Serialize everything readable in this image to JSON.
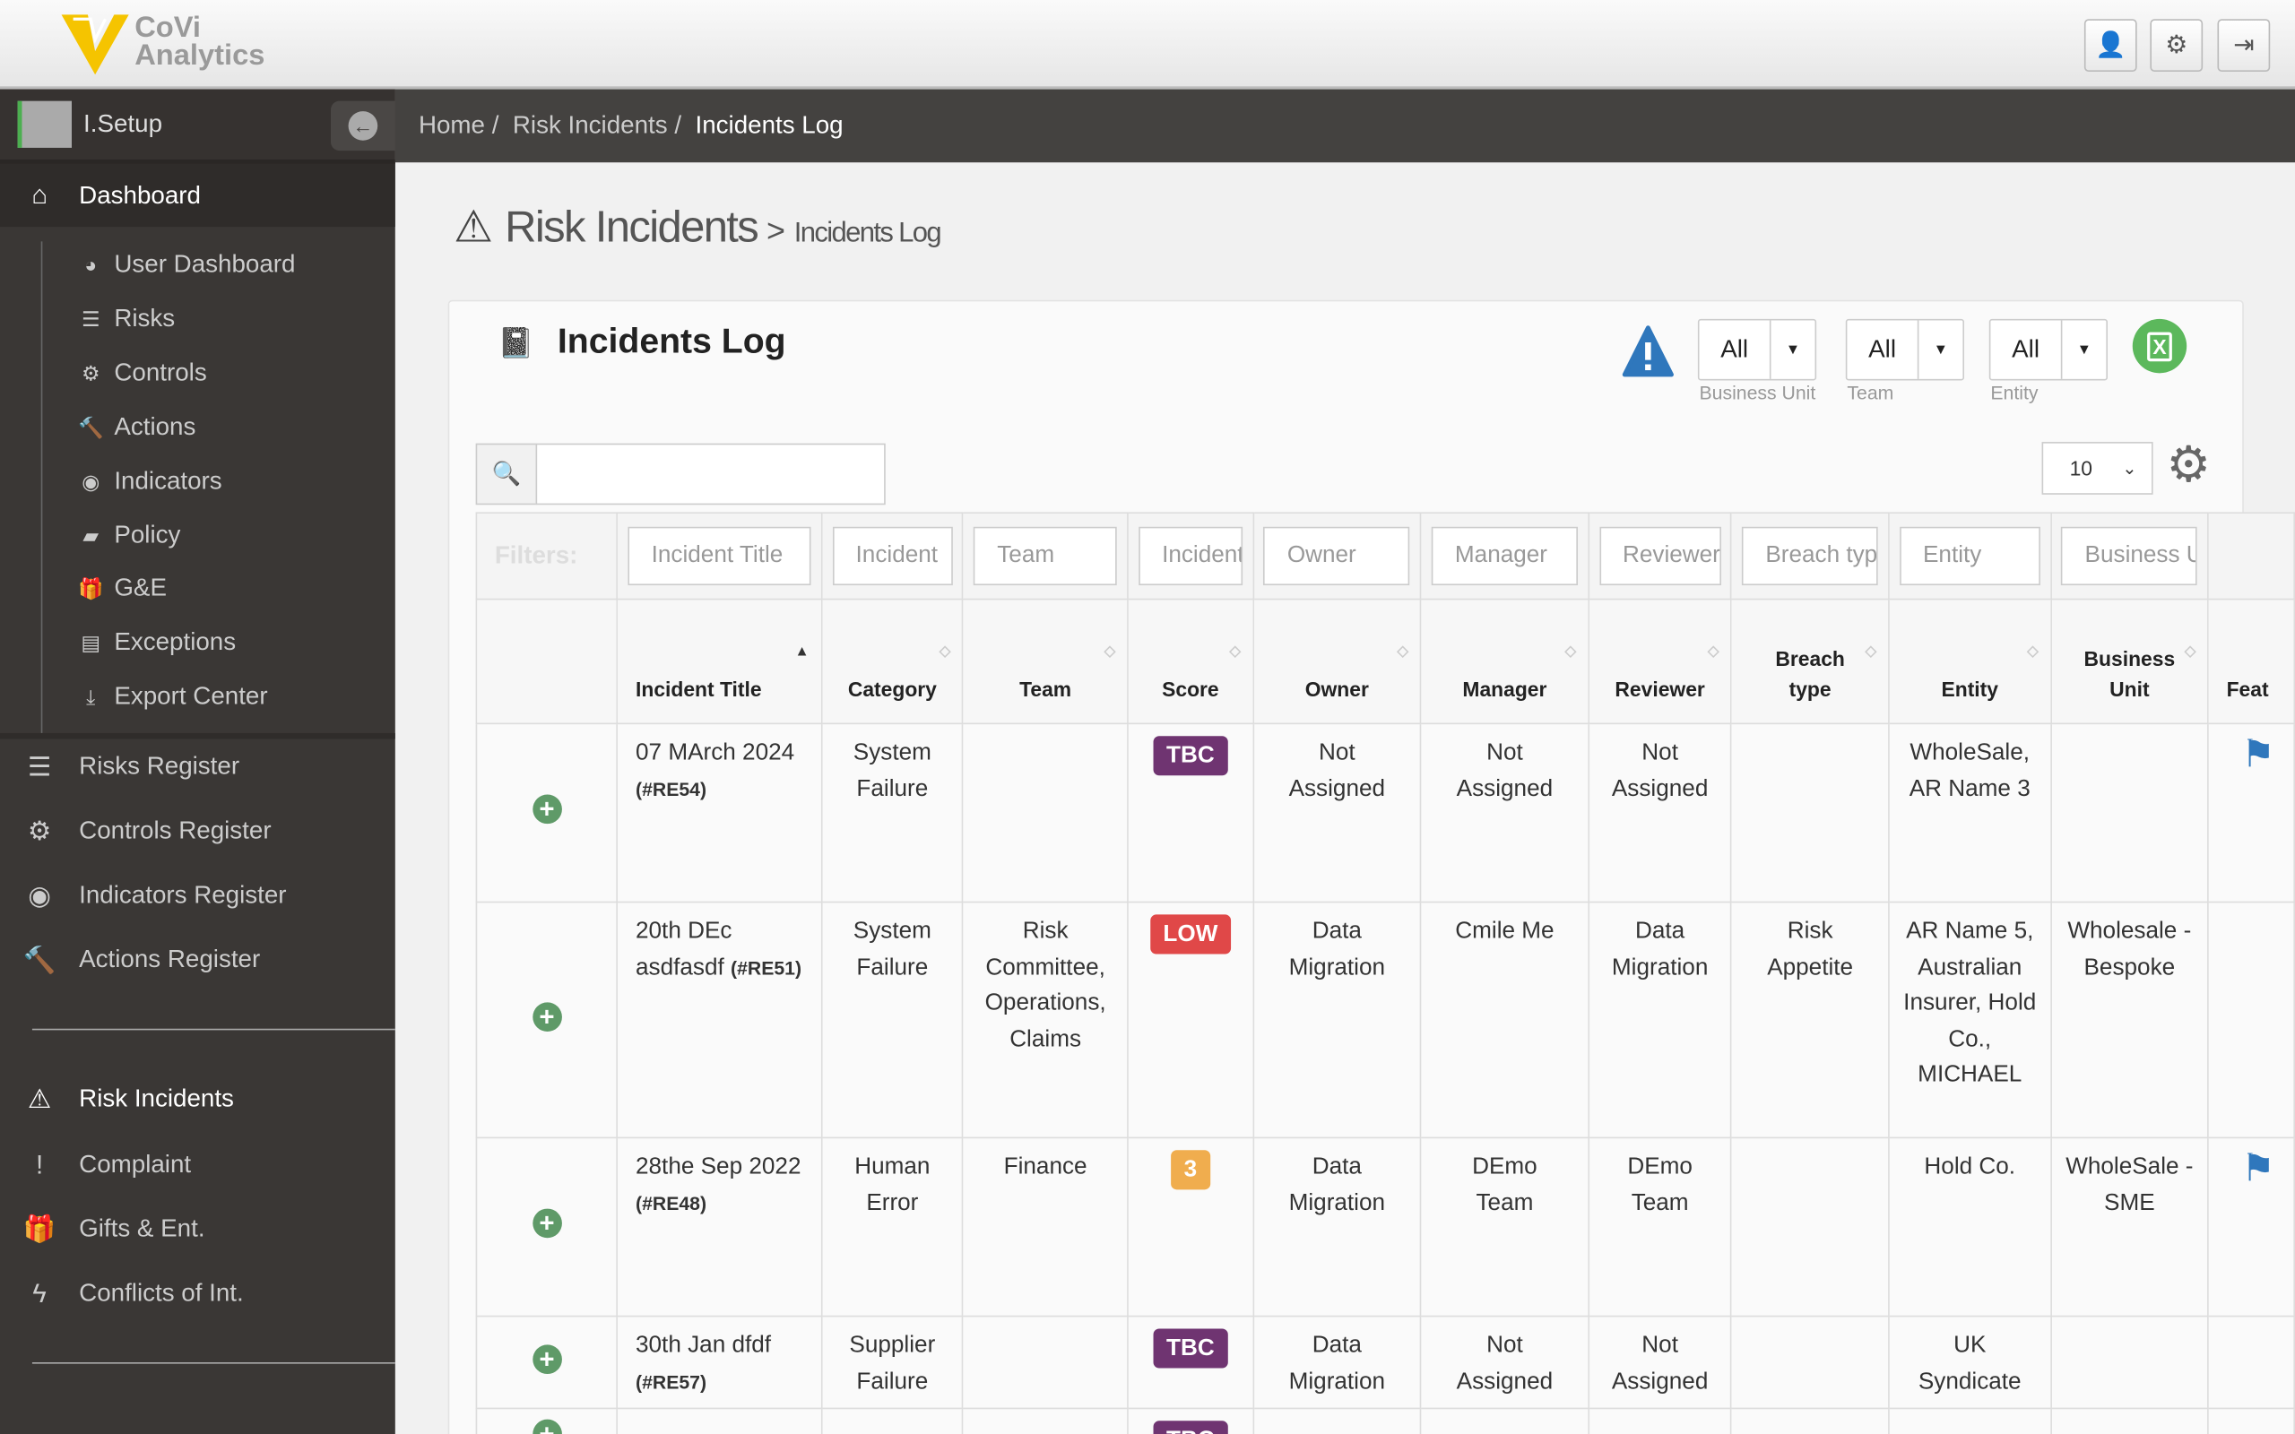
{
  "app": {
    "logo_line1": "CoVi",
    "logo_line2": "Analytics"
  },
  "topbar": {
    "buttons": [
      {
        "icon": "user-icon"
      },
      {
        "icon": "cogs-icon"
      },
      {
        "icon": "sign-out-icon"
      }
    ]
  },
  "sidebar": {
    "user": "I.Setup",
    "dashboard": "Dashboard",
    "dashboard_items": [
      "User Dashboard",
      "Risks",
      "Controls",
      "Actions",
      "Indicators",
      "Policy",
      "G&E",
      "Exceptions",
      "Export Center"
    ],
    "registers": [
      "Risks Register",
      "Controls Register",
      "Indicators Register",
      "Actions Register"
    ],
    "modules": [
      "Risk Incidents",
      "Complaint",
      "Gifts & Ent.",
      "Conflicts of Int."
    ]
  },
  "breadcrumb": [
    "Home",
    "Risk Incidents",
    "Incidents Log"
  ],
  "page": {
    "title": "Risk Incidents",
    "subtitle": "Incidents Log"
  },
  "panel": {
    "title": "Incidents Log",
    "filters": [
      {
        "value": "All",
        "label": "Business Unit"
      },
      {
        "value": "All",
        "label": "Team"
      },
      {
        "value": "All",
        "label": "Entity"
      }
    ],
    "search_value": "",
    "page_size": "10",
    "filters_label": "Filters:",
    "column_filters": [
      "Incident Title",
      "Incident",
      "Team",
      "Incident",
      "Owner",
      "Manager",
      "Reviewer",
      "Breach type",
      "Entity",
      "Business Unit"
    ],
    "columns": [
      "Incident Title",
      "Category",
      "Team",
      "Score",
      "Owner",
      "Manager",
      "Reviewer",
      "Breach type",
      "Entity",
      "Business Unit",
      "Feat"
    ],
    "rows": [
      {
        "title": "07 MArch 2024",
        "ref": "(#RE54)",
        "category": "System Failure",
        "team": "",
        "score": "TBC",
        "score_color": "#6f3471",
        "owner": "Not Assigned",
        "manager": "Not Assigned",
        "reviewer": "Not Assigned",
        "breach": "",
        "entity": "WholeSale, AR Name 3",
        "bu": "",
        "flag": true
      },
      {
        "title": "20th DEc asdfasdf",
        "ref": "(#RE51)",
        "category": "System Failure",
        "team": "Risk Committee, Operations, Claims",
        "score": "LOW",
        "score_color": "#e04848",
        "owner": "Data Migration",
        "manager": "Cmile Me",
        "reviewer": "Data Migration",
        "breach": "Risk Appetite",
        "entity": "AR Name 5, Australian Insurer, Hold Co., MICHAEL",
        "bu": "Wholesale - Bespoke",
        "flag": false
      },
      {
        "title": "28the Sep 2022",
        "ref": "(#RE48)",
        "category": "Human Error",
        "team": "Finance",
        "score": "3",
        "score_color": "#f0ad4e",
        "owner": "Data Migration",
        "manager": "DEmo Team",
        "reviewer": "DEmo Team",
        "breach": "",
        "entity": "Hold Co.",
        "bu": "WholeSale - SME",
        "flag": true
      },
      {
        "title": "30th Jan dfdf",
        "ref": "(#RE57)",
        "category": "Supplier Failure",
        "team": "",
        "score": "TBC",
        "score_color": "#6f3471",
        "owner": "Data Migration",
        "manager": "Not Assigned",
        "reviewer": "Not Assigned",
        "breach": "",
        "entity": "UK Syndicate",
        "bu": "",
        "flag": false
      },
      {
        "title": "",
        "ref": "",
        "category": "",
        "team": "",
        "score": "TBC",
        "score_color": "#6f3471",
        "owner": "",
        "manager": "",
        "reviewer": "",
        "breach": "",
        "entity": "",
        "bu": "",
        "flag": false
      }
    ]
  },
  "colors": {
    "sidebar": "#3a3735",
    "accent_blue": "#2f77bc",
    "excel_green": "#5cb85c",
    "add_green": "#5f9a68"
  }
}
